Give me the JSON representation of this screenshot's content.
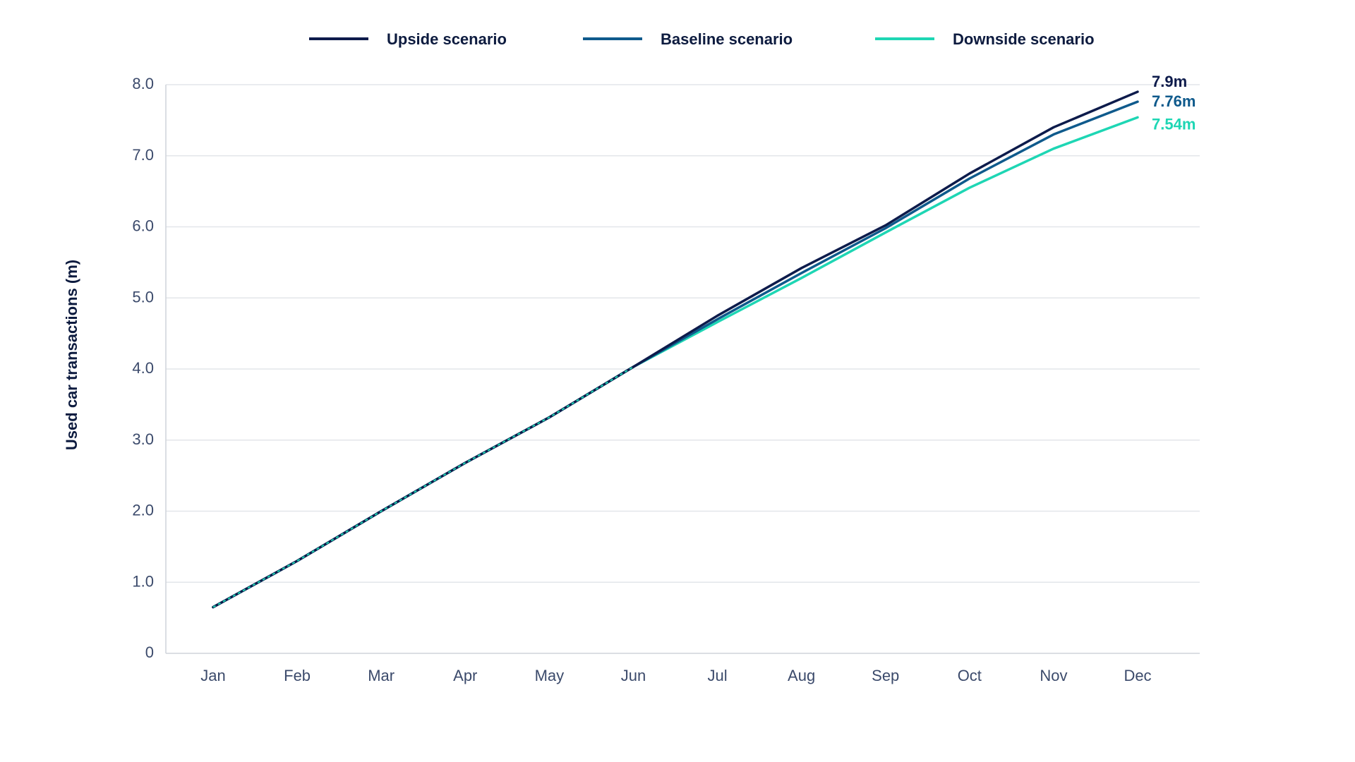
{
  "colors": {
    "upside": "#0d1b4b",
    "baseline": "#0f5a8c",
    "downside": "#1ed6b4",
    "grid": "#e3e6ea",
    "axis": "#cfd4da"
  },
  "chart_data": {
    "type": "line",
    "title": "",
    "xlabel": "",
    "ylabel": "Used car transactions (m)",
    "ylim": [
      0,
      8
    ],
    "yticks": [
      "0",
      "1.0",
      "2.0",
      "3.0",
      "4.0",
      "5.0",
      "6.0",
      "7.0",
      "8.0"
    ],
    "ytick_values": [
      0,
      1,
      2,
      3,
      4,
      5,
      6,
      7,
      8
    ],
    "categories": [
      "Jan",
      "Feb",
      "Mar",
      "Apr",
      "May",
      "Jun",
      "Jul",
      "Aug",
      "Sep",
      "Oct",
      "Nov",
      "Dec"
    ],
    "grid": true,
    "legend_position": "top-center",
    "series": [
      {
        "name": "Upside scenario",
        "color_key": "upside",
        "values": [
          0.65,
          1.3,
          2.0,
          2.68,
          3.32,
          4.03,
          4.75,
          5.42,
          6.02,
          6.75,
          7.4,
          7.9
        ],
        "end_label": "7.9m"
      },
      {
        "name": "Baseline scenario",
        "color_key": "baseline",
        "values": [
          0.65,
          1.3,
          2.0,
          2.68,
          3.32,
          4.03,
          4.7,
          5.35,
          5.98,
          6.68,
          7.3,
          7.76
        ],
        "end_label": "7.76m"
      },
      {
        "name": "Downside scenario",
        "color_key": "downside",
        "values": [
          0.65,
          1.3,
          2.0,
          2.68,
          3.32,
          4.03,
          4.66,
          5.28,
          5.92,
          6.55,
          7.1,
          7.54
        ],
        "end_label": "7.54m"
      }
    ]
  }
}
